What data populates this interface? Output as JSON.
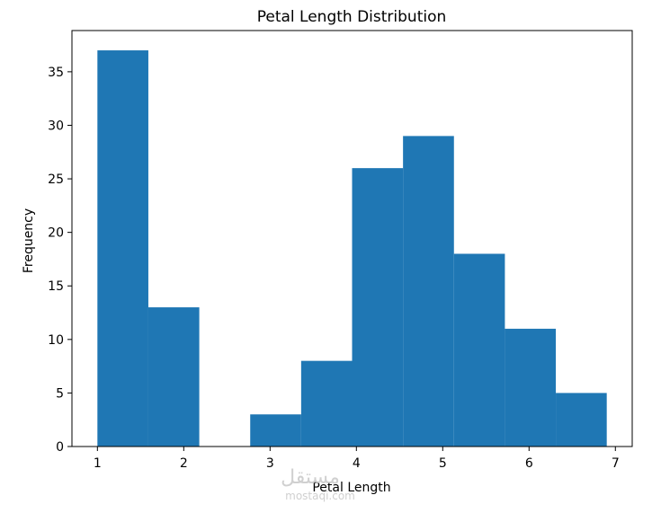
{
  "chart_data": {
    "type": "bar",
    "title": "Petal Length Distribution",
    "xlabel": "Petal Length",
    "ylabel": "Frequency",
    "xlim": [
      0.705,
      7.195
    ],
    "ylim": [
      0,
      38.85
    ],
    "xticks": [
      1,
      2,
      3,
      4,
      5,
      6,
      7
    ],
    "yticks": [
      0,
      5,
      10,
      15,
      20,
      25,
      30,
      35
    ],
    "bin_edges": [
      1.0,
      1.59,
      2.18,
      2.77,
      3.36,
      3.95,
      4.54,
      5.13,
      5.72,
      6.31,
      6.9
    ],
    "values": [
      37,
      13,
      0,
      3,
      8,
      26,
      29,
      18,
      11,
      5
    ],
    "bar_color": "#1f77b4",
    "grid": false
  },
  "watermark": {
    "text_ar": "مستقل",
    "text_latin": "mostaqi.com"
  }
}
